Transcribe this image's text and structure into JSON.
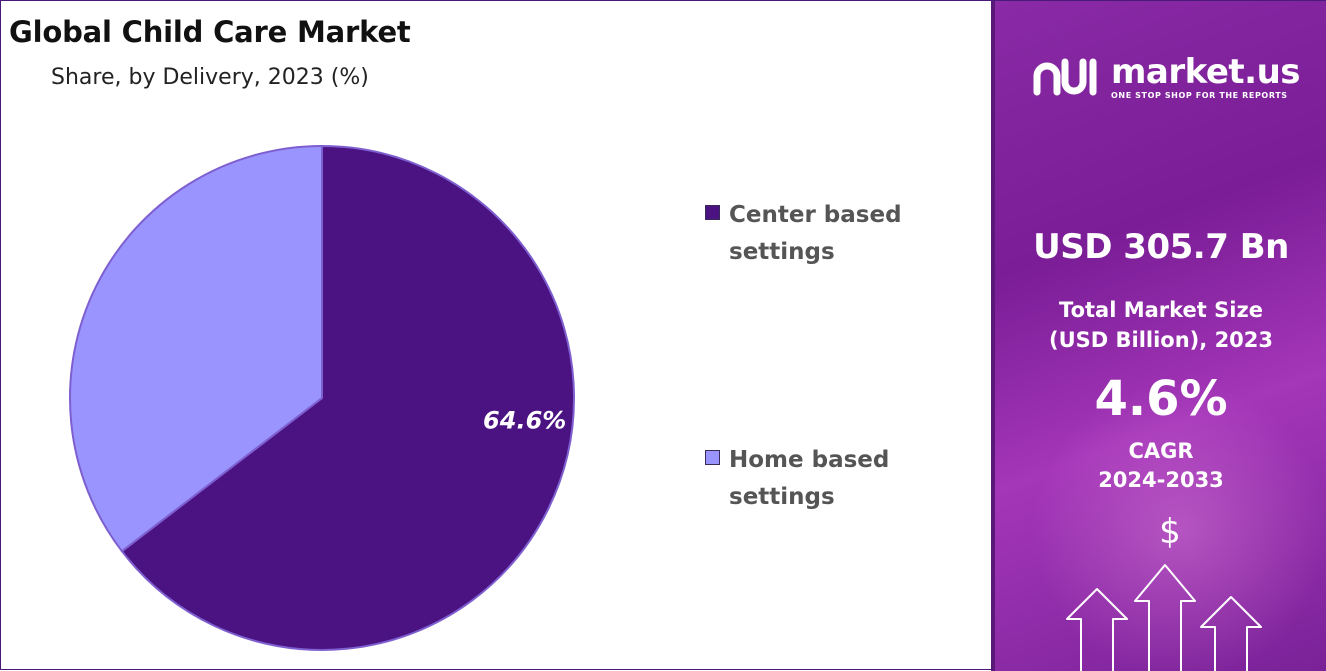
{
  "chart_data": {
    "type": "pie",
    "title": "Global Child Care Market",
    "subtitle": "Share, by Delivery, 2023 (%)",
    "slices": [
      {
        "label": "Center based settings",
        "value": 64.6,
        "color": "#4b1282",
        "data_label": "64.6%"
      },
      {
        "label": "Home based settings",
        "value": 35.4,
        "color": "#9a94ff",
        "data_label": ""
      }
    ],
    "legend_position": "right"
  },
  "legend": {
    "items": [
      {
        "line1": "Center based",
        "line2": "settings",
        "color": "#4b1282"
      },
      {
        "line1": "Home based",
        "line2": "settings",
        "color": "#9a94ff"
      }
    ]
  },
  "sidebar": {
    "brand": "market.us",
    "tagline": "ONE STOP SHOP FOR THE REPORTS",
    "market_size": "USD 305.7 Bn",
    "market_size_label_1": "Total Market Size",
    "market_size_label_2": "(USD Billion), 2023",
    "cagr": "4.6%",
    "cagr_label_1": "CAGR",
    "cagr_label_2": "2024-2033",
    "dollar": "$"
  },
  "icons": [
    "market-us-logo-icon",
    "dollar-icon",
    "growth-arrows-icon"
  ]
}
